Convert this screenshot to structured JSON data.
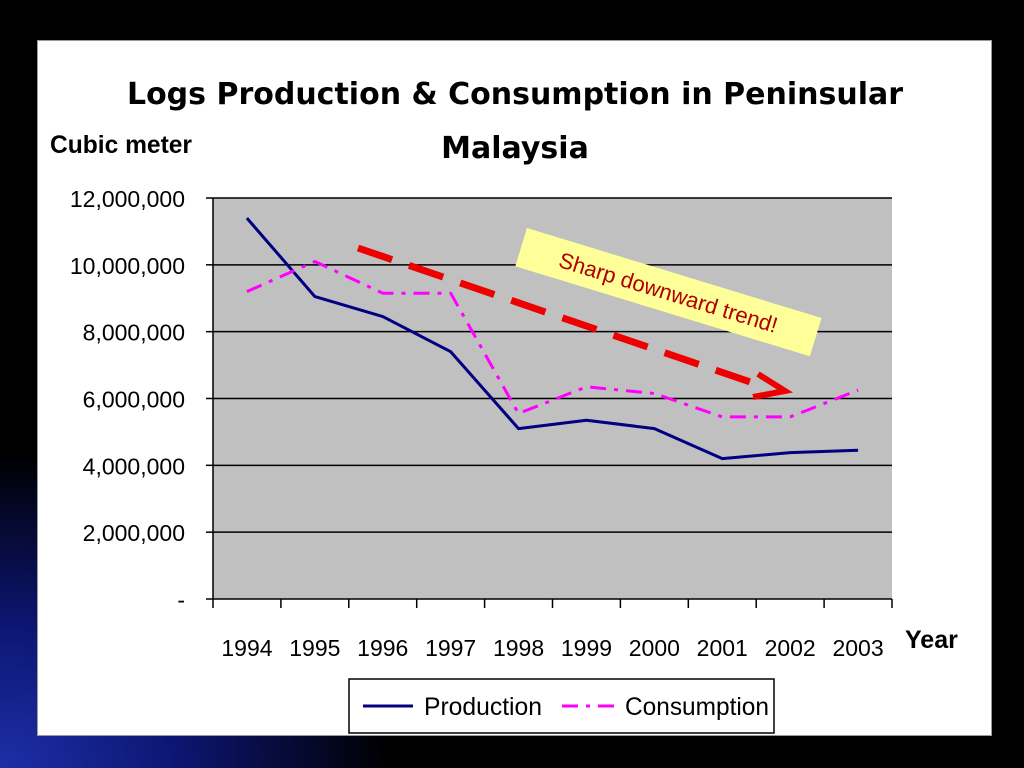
{
  "chart_data": {
    "type": "line",
    "title_lines": [
      "Logs Production & Consumption in Peninsular",
      "Malaysia"
    ],
    "ylabel": "Cubic meter",
    "xlabel": "Year",
    "categories": [
      "1994",
      "1995",
      "1996",
      "1997",
      "1998",
      "1999",
      "2000",
      "2001",
      "2002",
      "2003"
    ],
    "y_ticks": [
      "-",
      "2,000,000",
      "4,000,000",
      "6,000,000",
      "8,000,000",
      "10,000,000",
      "12,000,000"
    ],
    "ylim": [
      0,
      12000000
    ],
    "grid": true,
    "legend_position": "bottom",
    "series": [
      {
        "name": "Production",
        "color": "#000080",
        "style": "solid",
        "values": [
          11400000,
          9050000,
          8450000,
          7400000,
          5100000,
          5350000,
          5100000,
          4200000,
          4380000,
          4450000
        ]
      },
      {
        "name": "Consumption",
        "color": "#ff00ff",
        "style": "dash-dot",
        "values": [
          9200000,
          10100000,
          9150000,
          9150000,
          5550000,
          6350000,
          6150000,
          5450000,
          5450000,
          6250000
        ]
      }
    ],
    "annotation": {
      "text": "Sharp downward trend!",
      "arrow_color": "#ee0000",
      "box_color": "#ffff99"
    }
  },
  "colors": {
    "plot_background": "#c0c0c0",
    "gridline": "#000000"
  }
}
